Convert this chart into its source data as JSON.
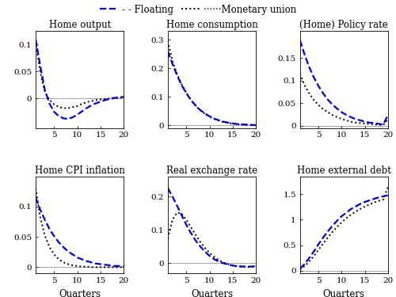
{
  "panels": [
    {
      "title": "Home output",
      "ylim": [
        -0.055,
        0.125
      ],
      "yticks": [
        0,
        0.05,
        0.1
      ],
      "show_xlabel": false,
      "show_ylabel": true,
      "floating": [
        0.11,
        0.06,
        0.015,
        -0.01,
        -0.025,
        -0.033,
        -0.037,
        -0.038,
        -0.035,
        -0.03,
        -0.024,
        -0.018,
        -0.013,
        -0.009,
        -0.006,
        -0.003,
        -0.001,
        0.001,
        0.002,
        0.003
      ],
      "munion": [
        0.105,
        0.048,
        0.012,
        -0.003,
        -0.011,
        -0.016,
        -0.018,
        -0.018,
        -0.016,
        -0.014,
        -0.01,
        -0.007,
        -0.005,
        -0.003,
        -0.002,
        -0.001,
        0.0,
        0.0,
        0.001,
        0.002
      ]
    },
    {
      "title": "Home consumption",
      "ylim": [
        -0.01,
        0.33
      ],
      "yticks": [
        0,
        0.1,
        0.2,
        0.3
      ],
      "show_xlabel": false,
      "show_ylabel": true,
      "floating": [
        0.26,
        0.215,
        0.175,
        0.14,
        0.112,
        0.088,
        0.069,
        0.053,
        0.041,
        0.031,
        0.023,
        0.017,
        0.012,
        0.009,
        0.006,
        0.004,
        0.003,
        0.002,
        0.001,
        0.0
      ],
      "munion": [
        0.295,
        0.225,
        0.18,
        0.143,
        0.113,
        0.088,
        0.068,
        0.052,
        0.04,
        0.03,
        0.022,
        0.016,
        0.011,
        0.008,
        0.005,
        0.003,
        0.002,
        0.001,
        0.001,
        0.0
      ]
    },
    {
      "title": "(Home) Policy rate",
      "ylim": [
        -0.005,
        0.21
      ],
      "yticks": [
        0,
        0.05,
        0.1,
        0.15
      ],
      "show_xlabel": false,
      "show_ylabel": true,
      "floating": [
        0.19,
        0.158,
        0.13,
        0.107,
        0.088,
        0.072,
        0.058,
        0.047,
        0.038,
        0.03,
        0.024,
        0.019,
        0.015,
        0.012,
        0.009,
        0.007,
        0.006,
        0.004,
        0.003,
        0.025
      ],
      "munion": [
        0.115,
        0.09,
        0.072,
        0.057,
        0.046,
        0.037,
        0.03,
        0.024,
        0.019,
        0.015,
        0.012,
        0.009,
        0.007,
        0.006,
        0.005,
        0.004,
        0.003,
        0.002,
        0.002,
        0.015
      ]
    },
    {
      "title": "Home CPI inflation",
      "ylim": [
        -0.01,
        0.15
      ],
      "yticks": [
        0,
        0.05,
        0.1
      ],
      "show_xlabel": true,
      "show_ylabel": true,
      "floating": [
        0.115,
        0.095,
        0.078,
        0.063,
        0.051,
        0.041,
        0.033,
        0.026,
        0.021,
        0.016,
        0.013,
        0.01,
        0.008,
        0.006,
        0.005,
        0.004,
        0.003,
        0.002,
        0.002,
        0.001
      ],
      "munion": [
        0.13,
        0.082,
        0.052,
        0.033,
        0.021,
        0.013,
        0.008,
        0.005,
        0.003,
        0.002,
        0.001,
        0.001,
        0.0,
        0.0,
        0.0,
        0.0,
        0.0,
        0.0,
        0.0,
        0.0
      ]
    },
    {
      "title": "Real exchange rate",
      "ylim": [
        -0.03,
        0.26
      ],
      "yticks": [
        0,
        0.1,
        0.2
      ],
      "show_xlabel": true,
      "show_ylabel": true,
      "floating": [
        0.225,
        0.2,
        0.172,
        0.143,
        0.115,
        0.09,
        0.068,
        0.05,
        0.035,
        0.022,
        0.012,
        0.005,
        0.0,
        -0.004,
        -0.007,
        -0.009,
        -0.01,
        -0.01,
        -0.01,
        -0.009
      ],
      "munion": [
        0.075,
        0.13,
        0.152,
        0.148,
        0.13,
        0.108,
        0.085,
        0.064,
        0.046,
        0.031,
        0.019,
        0.009,
        0.002,
        -0.003,
        -0.007,
        -0.009,
        -0.01,
        -0.011,
        -0.011,
        -0.01
      ]
    },
    {
      "title": "Home external debt",
      "ylim": [
        -0.05,
        1.85
      ],
      "yticks": [
        0,
        0.5,
        1.0,
        1.5
      ],
      "show_xlabel": true,
      "show_ylabel": true,
      "floating": [
        0.04,
        0.13,
        0.25,
        0.38,
        0.52,
        0.65,
        0.77,
        0.88,
        0.98,
        1.07,
        1.14,
        1.21,
        1.26,
        1.31,
        1.35,
        1.38,
        1.41,
        1.44,
        1.46,
        1.48
      ],
      "munion": [
        0.025,
        0.09,
        0.18,
        0.29,
        0.41,
        0.53,
        0.65,
        0.76,
        0.86,
        0.95,
        1.03,
        1.1,
        1.16,
        1.21,
        1.26,
        1.3,
        1.34,
        1.37,
        1.4,
        1.65
      ]
    }
  ],
  "quarters": [
    1,
    2,
    3,
    4,
    5,
    6,
    7,
    8,
    9,
    10,
    11,
    12,
    13,
    14,
    15,
    16,
    17,
    18,
    19,
    20
  ],
  "floating_color": "#0000cc",
  "munion_color": "#000000",
  "floating_style": "--",
  "munion_style": ":",
  "floating_linewidth": 1.6,
  "munion_linewidth": 1.4,
  "xlabel": "Quarters",
  "xticks": [
    5,
    10,
    15,
    20
  ],
  "legend_floating": "Floating",
  "legend_munion": "Monetary union",
  "figsize": [
    5.0,
    3.75
  ],
  "dpi": 100
}
